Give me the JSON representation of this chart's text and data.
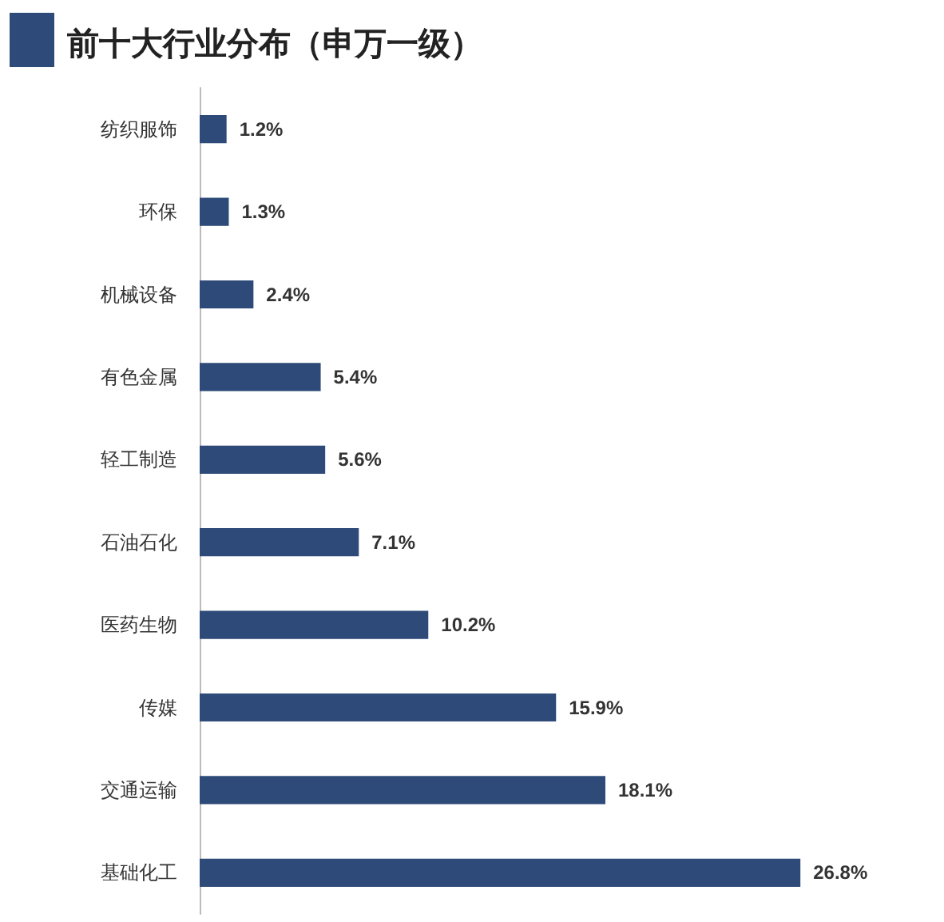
{
  "chart_data": {
    "type": "bar",
    "orientation": "horizontal",
    "title": "前十大行业分布（申万一级）",
    "categories": [
      "纺织服饰",
      "环保",
      "机械设备",
      "有色金属",
      "轻工制造",
      "石油石化",
      "医药生物",
      "传媒",
      "交通运输",
      "基础化工"
    ],
    "values": [
      1.2,
      1.3,
      2.4,
      5.4,
      5.6,
      7.1,
      10.2,
      15.9,
      18.1,
      26.8
    ],
    "value_labels": [
      "1.2%",
      "1.3%",
      "2.4%",
      "5.4%",
      "5.6%",
      "7.1%",
      "10.2%",
      "15.9%",
      "18.1%",
      "26.8%"
    ],
    "color": "#2d4a78"
  }
}
